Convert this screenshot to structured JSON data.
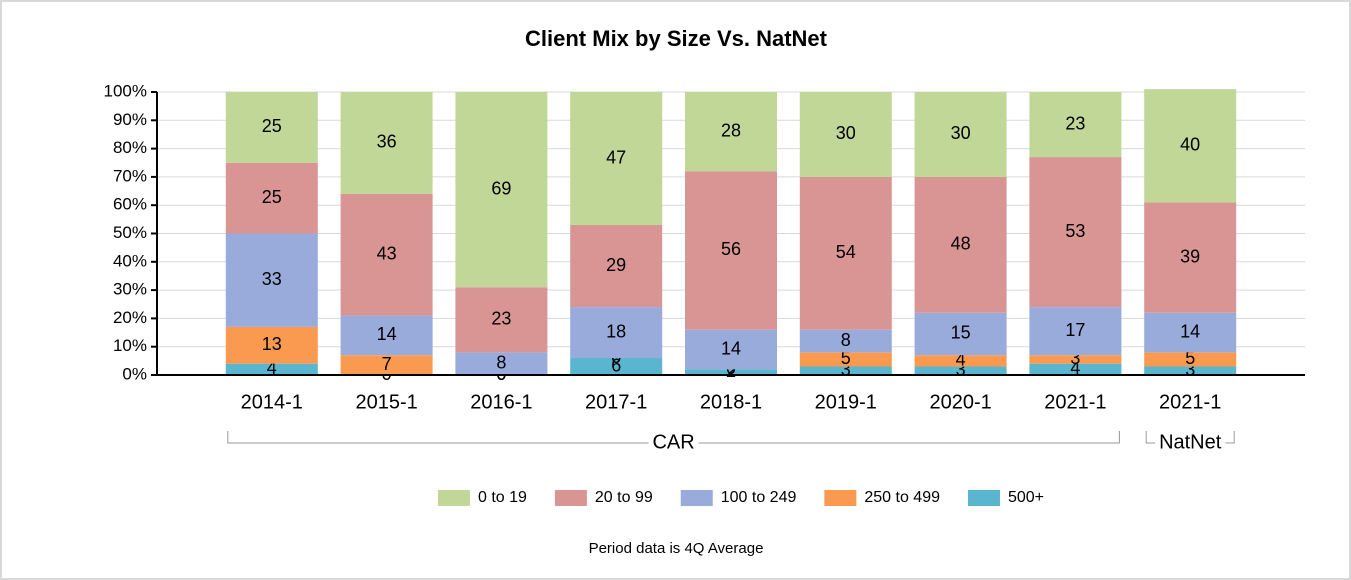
{
  "chart_data": {
    "type": "stacked_bar",
    "title": "Client Mix by Size Vs. NatNet",
    "note": "Period data is 4Q Average",
    "categories": [
      "2014-1",
      "2015-1",
      "2016-1",
      "2017-1",
      "2018-1",
      "2019-1",
      "2020-1",
      "2021-1",
      "2021-1"
    ],
    "groups": [
      {
        "name": "CAR",
        "count": 8
      },
      {
        "name": "NatNet",
        "count": 1
      }
    ],
    "series": [
      {
        "name": "500+",
        "color": "#5ab6cf",
        "values": [
          4,
          0,
          0,
          6,
          2,
          3,
          3,
          4,
          3
        ]
      },
      {
        "name": "250 to 499",
        "color": "#f99a50",
        "values": [
          13,
          7,
          0,
          0,
          0,
          5,
          4,
          3,
          5
        ]
      },
      {
        "name": "100 to 249",
        "color": "#98abdb",
        "values": [
          33,
          14,
          8,
          18,
          14,
          8,
          15,
          17,
          14
        ]
      },
      {
        "name": "20 to 99",
        "color": "#d99594",
        "values": [
          25,
          43,
          23,
          29,
          56,
          54,
          48,
          53,
          39
        ]
      },
      {
        "name": "0 to 19",
        "color": "#c0d798",
        "values": [
          25,
          36,
          69,
          47,
          28,
          30,
          30,
          23,
          40
        ]
      }
    ],
    "ylim": [
      0,
      100
    ],
    "yticks": [
      {
        "value": 0,
        "label": "0%"
      },
      {
        "value": 10,
        "label": "10%"
      },
      {
        "value": 20,
        "label": "20%"
      },
      {
        "value": 30,
        "label": "30%"
      },
      {
        "value": 40,
        "label": "40%"
      },
      {
        "value": 50,
        "label": "50%"
      },
      {
        "value": 60,
        "label": "60%"
      },
      {
        "value": 70,
        "label": "70%"
      },
      {
        "value": 80,
        "label": "80%"
      },
      {
        "value": 90,
        "label": "90%"
      },
      {
        "value": 100,
        "label": "100%"
      }
    ],
    "grid": true
  }
}
